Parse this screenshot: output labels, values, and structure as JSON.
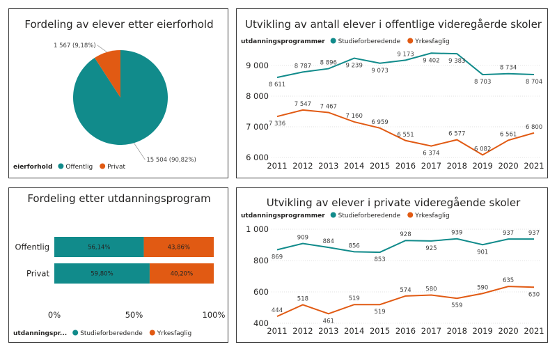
{
  "colors": {
    "teal": "#118b8b",
    "orange": "#e15a13",
    "grid": "#e2e2e2",
    "leader": "#999999"
  },
  "chart_data": [
    {
      "id": "pie",
      "type": "pie",
      "title": "Fordeling av elever etter eierforhold",
      "legend_title": "eierforhold",
      "slices": [
        {
          "name": "Offentlig",
          "value": 15504,
          "label": "15 504 (90,82%)"
        },
        {
          "name": "Privat",
          "value": 1567,
          "label": "1 567 (9,18%)"
        }
      ]
    },
    {
      "id": "public",
      "type": "line",
      "title": "Utvikling av antall elever i offentlige videregåerde skoler",
      "legend_title": "utdanningsprogrammer",
      "x": [
        2011,
        2012,
        2013,
        2014,
        2015,
        2016,
        2017,
        2018,
        2019,
        2020,
        2021
      ],
      "ylim": [
        6000,
        9500
      ],
      "yticks": [
        6000,
        7000,
        8000,
        9000
      ],
      "ytick_labels": [
        "6 000",
        "7 000",
        "8 000",
        "9 000"
      ],
      "series": [
        {
          "name": "Studieforberedende",
          "values": [
            8611,
            8787,
            8896,
            9239,
            9073,
            9173,
            9402,
            9383,
            8703,
            8734,
            8704
          ],
          "labels": [
            "8 611",
            "8 787",
            "8 896",
            "9 239",
            "9 073",
            "9 173",
            "9 402",
            "9 383",
            "8 703",
            "8 734",
            "8 704"
          ]
        },
        {
          "name": "Yrkesfaglig",
          "values": [
            7336,
            7547,
            7467,
            7160,
            6959,
            6551,
            6374,
            6577,
            6082,
            6561,
            6800
          ],
          "labels": [
            "7 336",
            "7 547",
            "7 467",
            "7 160",
            "6 959",
            "6 551",
            "6 374",
            "6 577",
            "6 082",
            "6 561",
            "6 800"
          ]
        }
      ]
    },
    {
      "id": "stacked",
      "type": "bar",
      "orientation": "horizontal",
      "stacked": true,
      "title": "Fordeling etter utdanningsprogram",
      "legend_title": "utdanningspr...",
      "categories": [
        "Offentlig",
        "Privat"
      ],
      "xlim": [
        0,
        100
      ],
      "xticks": [
        0,
        50,
        100
      ],
      "xtick_labels": [
        "0%",
        "50%",
        "100%"
      ],
      "series": [
        {
          "name": "Studieforberedende",
          "values": [
            56.14,
            59.8
          ],
          "labels": [
            "56,14%",
            "59,80%"
          ]
        },
        {
          "name": "Yrkesfaglig",
          "values": [
            43.86,
            40.2
          ],
          "labels": [
            "43,86%",
            "40,20%"
          ]
        }
      ]
    },
    {
      "id": "private",
      "type": "line",
      "title": "Utvikling av elever i private videregående skoler",
      "legend_title": "utdanningsprogrammer",
      "x": [
        2011,
        2012,
        2013,
        2014,
        2015,
        2016,
        2017,
        2018,
        2019,
        2020,
        2021
      ],
      "ylim": [
        400,
        1000
      ],
      "yticks": [
        400,
        600,
        800,
        1000
      ],
      "ytick_labels": [
        "400",
        "600",
        "800",
        "1 000"
      ],
      "series": [
        {
          "name": "Studieforberedende",
          "values": [
            869,
            909,
            884,
            856,
            853,
            928,
            925,
            939,
            901,
            937,
            937
          ],
          "labels": [
            "869",
            "909",
            "884",
            "856",
            "853",
            "928",
            "925",
            "939",
            "901",
            "937",
            "937"
          ]
        },
        {
          "name": "Yrkesfaglig",
          "values": [
            444,
            518,
            461,
            519,
            519,
            574,
            580,
            559,
            590,
            635,
            630
          ],
          "labels": [
            "444",
            "518",
            "461",
            "519",
            "519",
            "574",
            "580",
            "559",
            "590",
            "635",
            "630"
          ]
        }
      ]
    }
  ]
}
